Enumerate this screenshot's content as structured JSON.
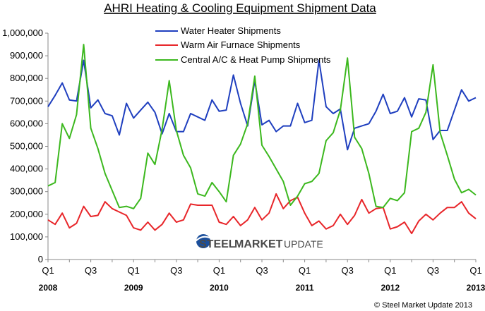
{
  "chart_data": {
    "type": "line",
    "title": "AHRI Heating & Cooling Equipment Shipment Data",
    "xlabel": "",
    "ylabel": "",
    "ylim": [
      0,
      1000000
    ],
    "yticks": [
      "0",
      "100,000",
      "200,000",
      "300,000",
      "400,000",
      "500,000",
      "600,000",
      "700,000",
      "800,000",
      "900,000",
      "1,000,000"
    ],
    "x_tick_labels": [
      {
        "label": "Q1",
        "month": 0
      },
      {
        "label": "Q3",
        "month": 6
      },
      {
        "label": "Q1",
        "month": 12
      },
      {
        "label": "Q3",
        "month": 18
      },
      {
        "label": "Q1",
        "month": 24
      },
      {
        "label": "Q3",
        "month": 30
      },
      {
        "label": "Q1",
        "month": 36
      },
      {
        "label": "Q3",
        "month": 42
      },
      {
        "label": "Q1",
        "month": 48
      },
      {
        "label": "Q3",
        "month": 54
      },
      {
        "label": "Q1",
        "month": 60
      }
    ],
    "year_labels": [
      {
        "label": "2008",
        "month": 0
      },
      {
        "label": "2009",
        "month": 12
      },
      {
        "label": "2010",
        "month": 24
      },
      {
        "label": "2011",
        "month": 36
      },
      {
        "label": "2012",
        "month": 48
      },
      {
        "label": "2013",
        "month": 60
      }
    ],
    "series": [
      {
        "name": "Water Heater Shipments",
        "color": "#1f3fbf",
        "values": [
          675000,
          725000,
          780000,
          705000,
          700000,
          880000,
          670000,
          705000,
          645000,
          635000,
          550000,
          690000,
          625000,
          660000,
          695000,
          650000,
          555000,
          645000,
          565000,
          565000,
          645000,
          630000,
          615000,
          705000,
          655000,
          660000,
          815000,
          690000,
          590000,
          790000,
          595000,
          615000,
          565000,
          590000,
          590000,
          690000,
          605000,
          615000,
          880000,
          675000,
          645000,
          665000,
          485000,
          580000,
          590000,
          600000,
          655000,
          730000,
          645000,
          655000,
          715000,
          630000,
          710000,
          705000,
          530000,
          570000,
          570000,
          660000,
          750000,
          700000,
          715000
        ]
      },
      {
        "name": "Warm Air Furnace Shipments",
        "color": "#e8262a",
        "values": [
          175000,
          155000,
          205000,
          140000,
          160000,
          235000,
          190000,
          195000,
          255000,
          225000,
          210000,
          195000,
          140000,
          130000,
          165000,
          130000,
          155000,
          205000,
          165000,
          175000,
          245000,
          240000,
          240000,
          240000,
          165000,
          155000,
          190000,
          150000,
          175000,
          230000,
          175000,
          205000,
          290000,
          225000,
          260000,
          275000,
          205000,
          150000,
          170000,
          135000,
          150000,
          200000,
          155000,
          195000,
          265000,
          205000,
          225000,
          230000,
          135000,
          145000,
          165000,
          115000,
          170000,
          200000,
          175000,
          205000,
          230000,
          230000,
          255000,
          205000,
          180000
        ]
      },
      {
        "name": "Central A/C & Heat Pump Shipments",
        "color": "#3cb81e",
        "values": [
          325000,
          340000,
          600000,
          535000,
          640000,
          950000,
          580000,
          490000,
          380000,
          305000,
          230000,
          235000,
          225000,
          270000,
          470000,
          420000,
          575000,
          790000,
          570000,
          460000,
          405000,
          290000,
          280000,
          340000,
          300000,
          255000,
          460000,
          510000,
          600000,
          810000,
          505000,
          455000,
          400000,
          345000,
          240000,
          280000,
          335000,
          345000,
          380000,
          525000,
          560000,
          660000,
          890000,
          540000,
          490000,
          380000,
          235000,
          230000,
          270000,
          260000,
          295000,
          565000,
          580000,
          650000,
          860000,
          560000,
          460000,
          355000,
          295000,
          310000,
          285000
        ]
      }
    ]
  },
  "watermark": {
    "steel": "STEEL",
    "market": "MARKET",
    "update": "UPDATE"
  },
  "copyright": "©   Steel Market Update 2013"
}
